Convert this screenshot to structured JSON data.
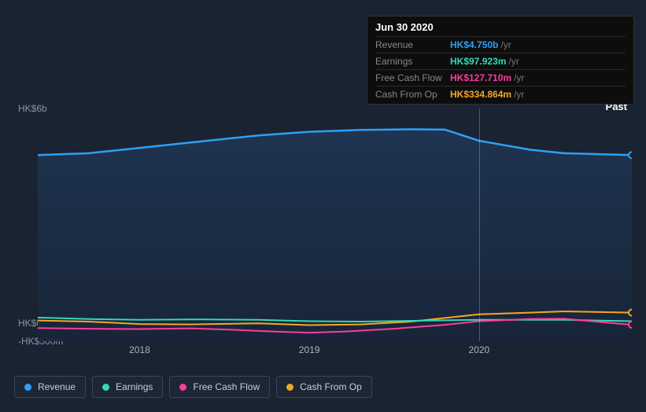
{
  "tooltip": {
    "date": "Jun 30 2020",
    "rows": [
      {
        "label": "Revenue",
        "value": "HK$4.750b",
        "unit": "/yr",
        "color": "#2f9ff5"
      },
      {
        "label": "Earnings",
        "value": "HK$97.923m",
        "unit": "/yr",
        "color": "#33d9b2"
      },
      {
        "label": "Free Cash Flow",
        "value": "HK$127.710m",
        "unit": "/yr",
        "color": "#ff3b9d"
      },
      {
        "label": "Cash From Op",
        "value": "HK$334.864m",
        "unit": "/yr",
        "color": "#f5a623"
      }
    ]
  },
  "past_label": "Past",
  "chart": {
    "background": "#1a2332",
    "grid_color": "#2a3647",
    "plot_fill_top": "#1f3552",
    "plot_fill_bottom": "#182539",
    "ylim": [
      -500000000,
      6000000000
    ],
    "y_ticks": [
      {
        "value": 6000000000,
        "label": "HK$6b"
      },
      {
        "value": 0,
        "label": "HK$0"
      },
      {
        "value": -500000000,
        "label": "-HK$500m"
      }
    ],
    "xlim": [
      2017.4,
      2020.9
    ],
    "x_ticks": [
      {
        "value": 2018,
        "label": "2018"
      },
      {
        "value": 2019,
        "label": "2019"
      },
      {
        "value": 2020,
        "label": "2020"
      }
    ],
    "cursor_x": 2020.0,
    "series": [
      {
        "key": "revenue",
        "name": "Revenue",
        "color": "#2f9ff5",
        "width": 2.5,
        "fill_area": true,
        "points": [
          {
            "x": 2017.4,
            "y": 4700000000
          },
          {
            "x": 2017.7,
            "y": 4750000000
          },
          {
            "x": 2018.0,
            "y": 4900000000
          },
          {
            "x": 2018.3,
            "y": 5050000000
          },
          {
            "x": 2018.7,
            "y": 5250000000
          },
          {
            "x": 2019.0,
            "y": 5350000000
          },
          {
            "x": 2019.3,
            "y": 5400000000
          },
          {
            "x": 2019.6,
            "y": 5420000000
          },
          {
            "x": 2019.8,
            "y": 5410000000
          },
          {
            "x": 2020.0,
            "y": 5100000000
          },
          {
            "x": 2020.3,
            "y": 4850000000
          },
          {
            "x": 2020.5,
            "y": 4750000000
          },
          {
            "x": 2020.9,
            "y": 4700000000
          }
        ],
        "end_marker": true
      },
      {
        "key": "cash_from_op",
        "name": "Cash From Op",
        "color": "#f5a623",
        "width": 2,
        "points": [
          {
            "x": 2017.4,
            "y": 80000000
          },
          {
            "x": 2017.7,
            "y": 50000000
          },
          {
            "x": 2018.0,
            "y": -20000000
          },
          {
            "x": 2018.3,
            "y": -30000000
          },
          {
            "x": 2018.7,
            "y": 0
          },
          {
            "x": 2019.0,
            "y": -50000000
          },
          {
            "x": 2019.3,
            "y": -30000000
          },
          {
            "x": 2019.6,
            "y": 50000000
          },
          {
            "x": 2020.0,
            "y": 250000000
          },
          {
            "x": 2020.3,
            "y": 300000000
          },
          {
            "x": 2020.5,
            "y": 334000000
          },
          {
            "x": 2020.9,
            "y": 300000000
          }
        ],
        "end_marker": true
      },
      {
        "key": "earnings",
        "name": "Earnings",
        "color": "#33d9b2",
        "width": 2,
        "points": [
          {
            "x": 2017.4,
            "y": 160000000
          },
          {
            "x": 2017.7,
            "y": 120000000
          },
          {
            "x": 2018.0,
            "y": 100000000
          },
          {
            "x": 2018.3,
            "y": 110000000
          },
          {
            "x": 2018.7,
            "y": 100000000
          },
          {
            "x": 2019.0,
            "y": 60000000
          },
          {
            "x": 2019.3,
            "y": 50000000
          },
          {
            "x": 2019.6,
            "y": 70000000
          },
          {
            "x": 2020.0,
            "y": 100000000
          },
          {
            "x": 2020.3,
            "y": 100000000
          },
          {
            "x": 2020.5,
            "y": 98000000
          },
          {
            "x": 2020.9,
            "y": 60000000
          }
        ]
      },
      {
        "key": "free_cash_flow",
        "name": "Free Cash Flow",
        "color": "#ff3b9d",
        "width": 2,
        "points": [
          {
            "x": 2017.4,
            "y": -130000000
          },
          {
            "x": 2017.7,
            "y": -150000000
          },
          {
            "x": 2018.0,
            "y": -160000000
          },
          {
            "x": 2018.3,
            "y": -140000000
          },
          {
            "x": 2018.5,
            "y": -170000000
          },
          {
            "x": 2018.8,
            "y": -230000000
          },
          {
            "x": 2019.0,
            "y": -260000000
          },
          {
            "x": 2019.2,
            "y": -230000000
          },
          {
            "x": 2019.5,
            "y": -150000000
          },
          {
            "x": 2019.8,
            "y": -40000000
          },
          {
            "x": 2020.0,
            "y": 60000000
          },
          {
            "x": 2020.3,
            "y": 120000000
          },
          {
            "x": 2020.5,
            "y": 128000000
          },
          {
            "x": 2020.9,
            "y": -40000000
          }
        ],
        "end_marker": true
      }
    ]
  },
  "legend": [
    {
      "label": "Revenue",
      "color": "#2f9ff5"
    },
    {
      "label": "Earnings",
      "color": "#33d9b2"
    },
    {
      "label": "Free Cash Flow",
      "color": "#ff3b9d"
    },
    {
      "label": "Cash From Op",
      "color": "#f5a623"
    }
  ]
}
